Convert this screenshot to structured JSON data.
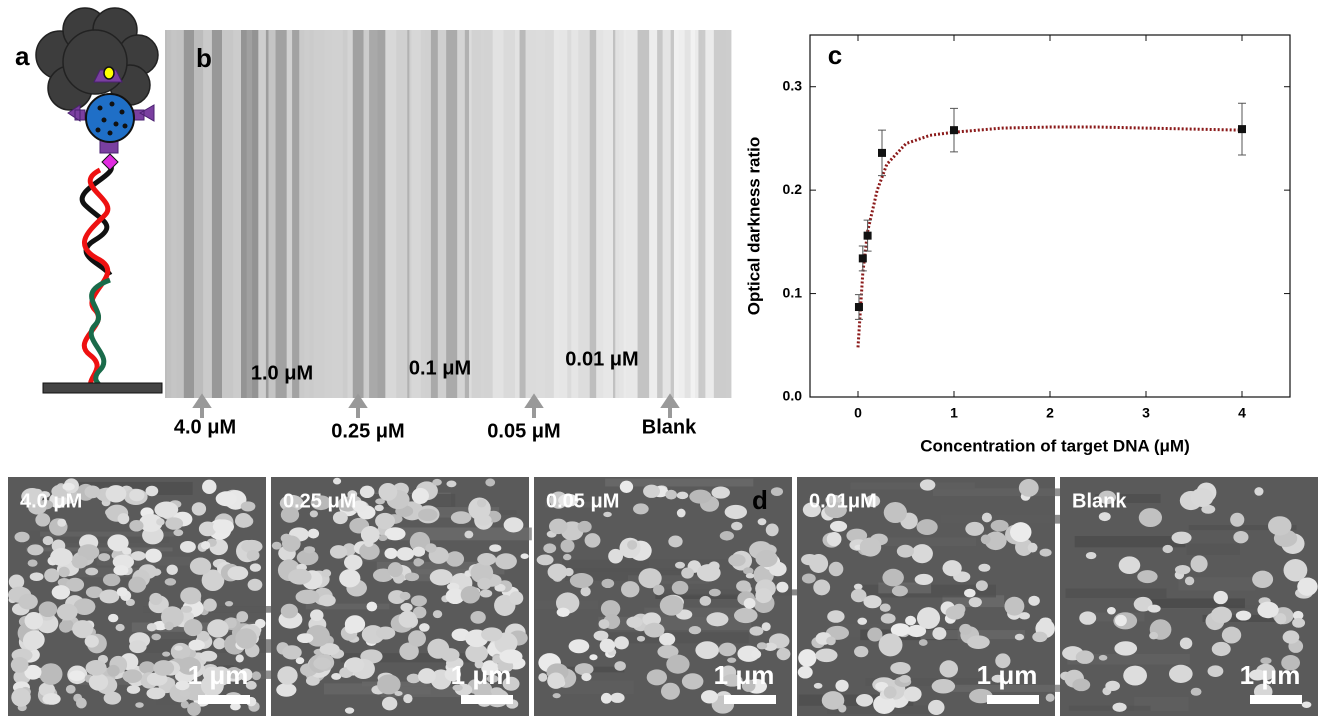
{
  "panel_labels": [
    "a",
    "b",
    "c",
    "d"
  ],
  "strip": {
    "labels_top": [
      "1.0 μM",
      "0.1 μM",
      "0.01 μM"
    ],
    "labels_bottom": [
      "4.0 μM",
      "0.25 μM",
      "0.05 μM",
      "Blank"
    ]
  },
  "chart_data": {
    "type": "scatter",
    "x_label": "Concentration of target DNA (μM)",
    "y_label": "Optical darkness ratio",
    "x": [
      0.01,
      0.05,
      0.1,
      0.25,
      1,
      4
    ],
    "values": [
      0.087,
      0.134,
      0.156,
      0.236,
      0.258,
      0.259
    ],
    "errors": [
      0.012,
      0.012,
      0.015,
      0.022,
      0.021,
      0.025
    ],
    "color": "#111111",
    "fit": {
      "x": [
        0,
        0.05,
        0.1,
        0.2,
        0.3,
        0.5,
        0.75,
        1,
        1.5,
        2,
        2.5,
        3,
        3.5,
        4
      ],
      "values": [
        0.048,
        0.12,
        0.16,
        0.2,
        0.225,
        0.245,
        0.253,
        0.256,
        0.26,
        0.261,
        0.261,
        0.26,
        0.259,
        0.258
      ],
      "color": "#8b1a1a"
    },
    "xlim": [
      -0.5,
      4.5
    ],
    "ylim": [
      0,
      0.35
    ],
    "xticks": [
      0,
      1,
      2,
      3,
      4
    ],
    "yticks": [
      {
        "value": 0,
        "label": "0.0"
      },
      0.1,
      0.2,
      0.3
    ]
  },
  "micrographs": [
    {
      "label": "4.0 μM",
      "scale": "1 μm"
    },
    {
      "label": "0.25 μM",
      "scale": "1 μm"
    },
    {
      "label": "0.05 μM",
      "scale": "1 μm"
    },
    {
      "label": "0.01μM",
      "scale": "1 μm"
    },
    {
      "label": "Blank",
      "scale": "1 μm"
    }
  ]
}
